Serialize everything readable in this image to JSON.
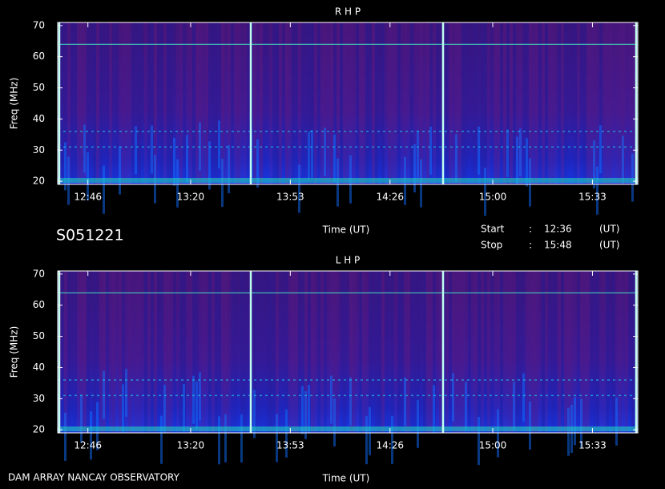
{
  "header": {
    "id": "S051221",
    "start_label": "Start",
    "start_sep": ":",
    "start": "12:36",
    "start_unit": "(UT)",
    "stop_label": "Stop",
    "stop_sep": ":",
    "stop": "15:48",
    "stop_unit": "(UT)",
    "footer": "DAM ARRAY  NANCAY OBSERVATORY"
  },
  "chart_data": [
    {
      "type": "spectrogram",
      "title": "R H P",
      "x_label": "Time (UT)",
      "y_label": "Freq (MHz)",
      "xlim": [
        "12:36",
        "15:48"
      ],
      "xticks": [
        "12:46",
        "13:20",
        "13:53",
        "14:26",
        "15:00",
        "15:33"
      ],
      "ylim": [
        19,
        71
      ],
      "yticks": [
        20,
        30,
        40,
        50,
        60,
        70
      ]
    },
    {
      "type": "spectrogram",
      "title": "L H P",
      "x_label": "Time (UT)",
      "y_label": "Freq (MHz)",
      "xlim": [
        "12:36",
        "15:48"
      ],
      "xticks": [
        "12:46",
        "13:20",
        "13:53",
        "14:26",
        "15:00",
        "15:33"
      ],
      "ylim": [
        19,
        71
      ],
      "yticks": [
        20,
        30,
        40,
        50,
        60,
        70
      ]
    }
  ]
}
